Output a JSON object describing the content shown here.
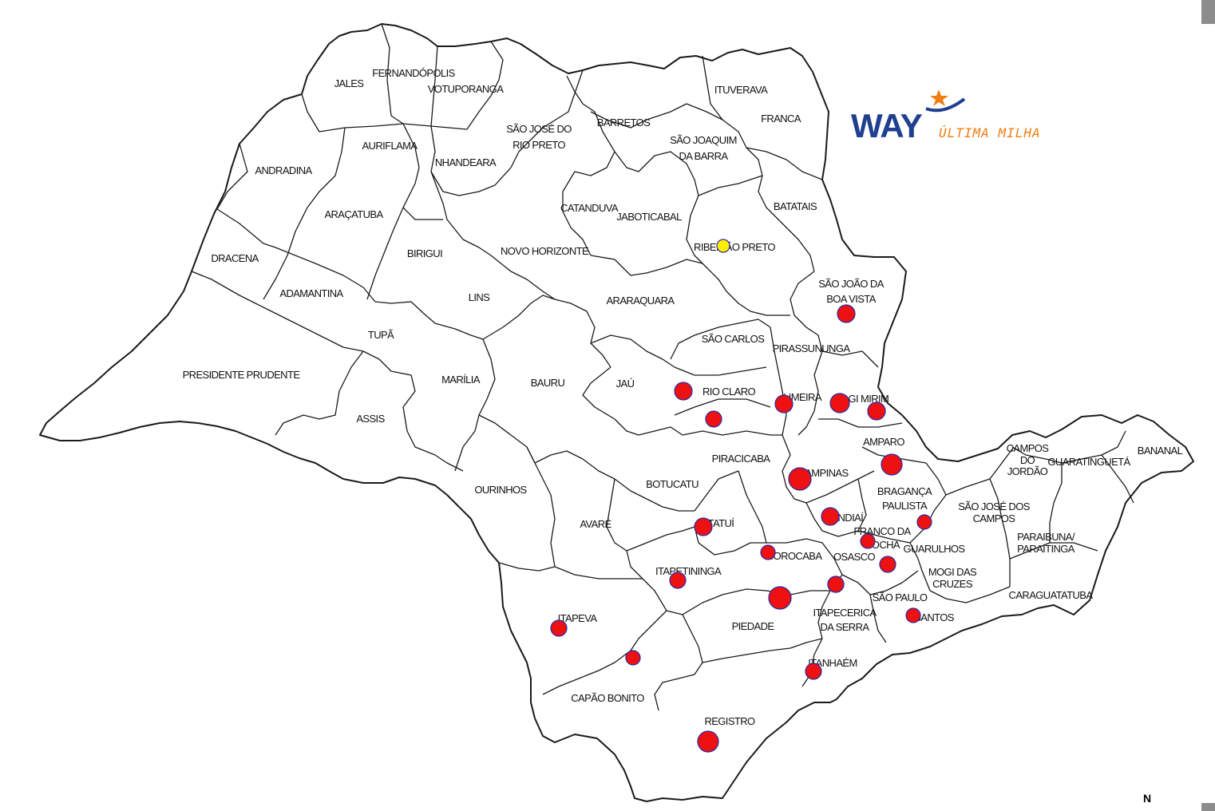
{
  "colors": {
    "brand_blue": "#1f3f8f",
    "brand_orange": "#f07d12",
    "marker_active": "#ee1111",
    "marker_stroke": "#2a2aa8",
    "marker_hq": "#ffee00"
  },
  "logo": {
    "wordmark": "WAY",
    "tagline": "ÚLTIMA MILHA",
    "icon": "star-swoosh-icon"
  },
  "compass": {
    "label": "N"
  },
  "regions": [
    "JALES",
    "FERNANDÓPOLIS",
    "VOTUPORANGA",
    "SÃO JOSÉ DO",
    "RIO PRETO",
    "AURIFLAMA",
    "NHANDEARA",
    "ANDRADINA",
    "ARAÇATUBA",
    "BIRIGUI",
    "DRACENA",
    "ADAMANTINA",
    "TUPÃ",
    "LINS",
    "NOVO HORIZONTE",
    "CATANDUVA",
    "JABOTICABAL",
    "BARRETOS",
    "SÃO JOAQUIM",
    "DA BARRA",
    "ITUVERAVA",
    "FRANCA",
    "BATATAIS",
    "RIBEIRÃO PRETO",
    "SÃO JOÃO DA",
    "BOA VISTA",
    "ARARAQUARA",
    "SÃO CARLOS",
    "PIRASSUNUNGA",
    "RIO CLARO",
    "LIMEIRA",
    "MOGI MIRIM",
    "AMPARO",
    "PIRACICABA",
    "CAMPINAS",
    "BRAGANÇA",
    "PAULISTA",
    "PRESIDENTE PRUDENTE",
    "ASSIS",
    "MARÍLIA",
    "BAURU",
    "JAÚ",
    "OURINHOS",
    "BOTUCATU",
    "AVARÉ",
    "TATUÍ",
    "SOROCABA",
    "JUNDIAÍ",
    "FRANCO DA",
    "ROCHA",
    "GUARULHOS",
    "OSASCO",
    "SÃO PAULO",
    "MOGI DAS",
    "CRUZES",
    "ITAPETININGA",
    "ITAPEVA",
    "PIEDADE",
    "ITAPECERICA",
    "DA SERRA",
    "SANTOS",
    "ITANHAÉM",
    "CAPÃO BONITO",
    "REGISTRO",
    "SÃO JOSÉ DOS",
    "CAMPOS",
    "CAMPOS",
    "DO",
    "JORDÃO",
    "GUARATINGUETÁ",
    "BANANAL",
    "PARAIBUNA/",
    "PARAITINGA",
    "CARAGUATATUBA"
  ],
  "markers": [
    {
      "region": "RIBEIRÃO PRETO",
      "status": "headquarters"
    },
    {
      "region": "SÃO JOÃO DA BOA VISTA",
      "status": "active"
    },
    {
      "region": "RIO CLARO",
      "status": "active"
    },
    {
      "region": "RIO CLARO (south)",
      "status": "active"
    },
    {
      "region": "LIMEIRA",
      "status": "active"
    },
    {
      "region": "MOGI MIRIM",
      "status": "active"
    },
    {
      "region": "MOGI MIRIM (east)",
      "status": "active"
    },
    {
      "region": "AMPARO",
      "status": "active"
    },
    {
      "region": "CAMPINAS",
      "status": "active"
    },
    {
      "region": "JUNDIAÍ",
      "status": "active"
    },
    {
      "region": "BRAGANÇA PAULISTA",
      "status": "active"
    },
    {
      "region": "FRANCO DA ROCHA",
      "status": "active"
    },
    {
      "region": "GUARULHOS",
      "status": "active"
    },
    {
      "region": "OSASCO",
      "status": "active"
    },
    {
      "region": "TATUÍ",
      "status": "active"
    },
    {
      "region": "SOROCABA",
      "status": "active"
    },
    {
      "region": "ITAPETININGA",
      "status": "active"
    },
    {
      "region": "PIEDADE",
      "status": "active"
    },
    {
      "region": "ITAPECERICA DA SERRA",
      "status": "active"
    },
    {
      "region": "SANTOS",
      "status": "active"
    },
    {
      "region": "ITANHAÉM",
      "status": "active"
    },
    {
      "region": "ITAPEVA",
      "status": "active"
    },
    {
      "region": "CAPÃO BONITO",
      "status": "active"
    },
    {
      "region": "REGISTRO",
      "status": "active"
    }
  ]
}
